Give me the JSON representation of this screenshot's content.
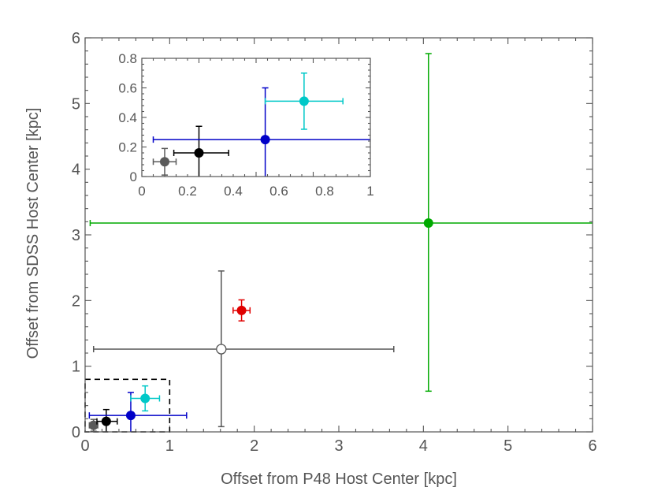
{
  "chart_data": {
    "type": "scatter",
    "xlabel": "Offset from P48 Host Center [kpc]",
    "ylabel": "Offset from SDSS Host Center [kpc]",
    "xlim": [
      0,
      6
    ],
    "ylim": [
      0,
      6
    ],
    "xticks": [
      "0",
      "1",
      "2",
      "3",
      "4",
      "5",
      "6"
    ],
    "yticks": [
      "0",
      "1",
      "2",
      "3",
      "4",
      "5",
      "6"
    ],
    "grid": false,
    "points": [
      {
        "name": "gray",
        "color": "#5a5a5a",
        "filled": true,
        "x": 0.1,
        "y": 0.1,
        "xerr": [
          0.05,
          0.05
        ],
        "yerr": [
          0.09,
          0.09
        ]
      },
      {
        "name": "black",
        "color": "#000000",
        "filled": true,
        "x": 0.25,
        "y": 0.16,
        "xerr": [
          0.11,
          0.13
        ],
        "yerr": [
          0.16,
          0.18
        ]
      },
      {
        "name": "blue",
        "color": "#0000c8",
        "filled": true,
        "x": 0.54,
        "y": 0.25,
        "xerr": [
          0.49,
          0.66
        ],
        "yerr": [
          0.25,
          0.35
        ]
      },
      {
        "name": "cyan",
        "color": "#00c8c8",
        "filled": true,
        "x": 0.71,
        "y": 0.51,
        "xerr": [
          0.17,
          0.17
        ],
        "yerr": [
          0.19,
          0.19
        ]
      },
      {
        "name": "white",
        "color": "#555555",
        "filled": false,
        "x": 1.61,
        "y": 1.26,
        "xerr": [
          1.51,
          2.04
        ],
        "yerr": [
          1.18,
          1.19
        ]
      },
      {
        "name": "red",
        "color": "#e00000",
        "filled": true,
        "x": 1.85,
        "y": 1.85,
        "xerr": [
          0.1,
          0.1
        ],
        "yerr": [
          0.16,
          0.16
        ]
      },
      {
        "name": "green",
        "color": "#00aa00",
        "filled": true,
        "x": 4.06,
        "y": 3.18,
        "xerr": [
          4.0,
          4.0
        ],
        "yerr": [
          2.56,
          2.58
        ]
      }
    ],
    "zoom_box": {
      "x": [
        0,
        1
      ],
      "y": [
        0,
        0.8
      ]
    },
    "inset": {
      "xlim": [
        0,
        1
      ],
      "ylim": [
        0,
        0.8
      ],
      "xticks": [
        "0",
        "0.2",
        "0.4",
        "0.6",
        "0.8",
        "1"
      ],
      "yticks": [
        "0",
        "0.2",
        "0.4",
        "0.6",
        "0.8"
      ]
    }
  }
}
